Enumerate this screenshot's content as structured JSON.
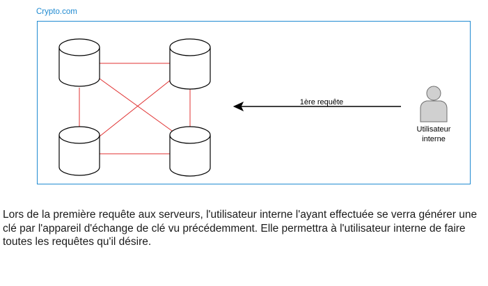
{
  "diagram": {
    "container_label": "Crypto.com",
    "arrow_label": "1ère requête",
    "user_label_line1": "Utilisateur",
    "user_label_line2": "interne",
    "icons": {
      "server": "database-cylinder-icon",
      "user": "user-icon"
    },
    "colors": {
      "container_border": "#1f8ad1",
      "container_label": "#1f8ad1",
      "link": "#e03030",
      "user_fill": "#d0d0d0"
    }
  },
  "caption": {
    "text": "Lors de la première requête aux serveurs, l'utilisateur interne l'ayant effectuée se verra générer une clé par l'appareil d'échange de clé vu précédemment. Elle permettra à l'utilisateur interne de faire toutes les requêtes qu'il désire."
  }
}
